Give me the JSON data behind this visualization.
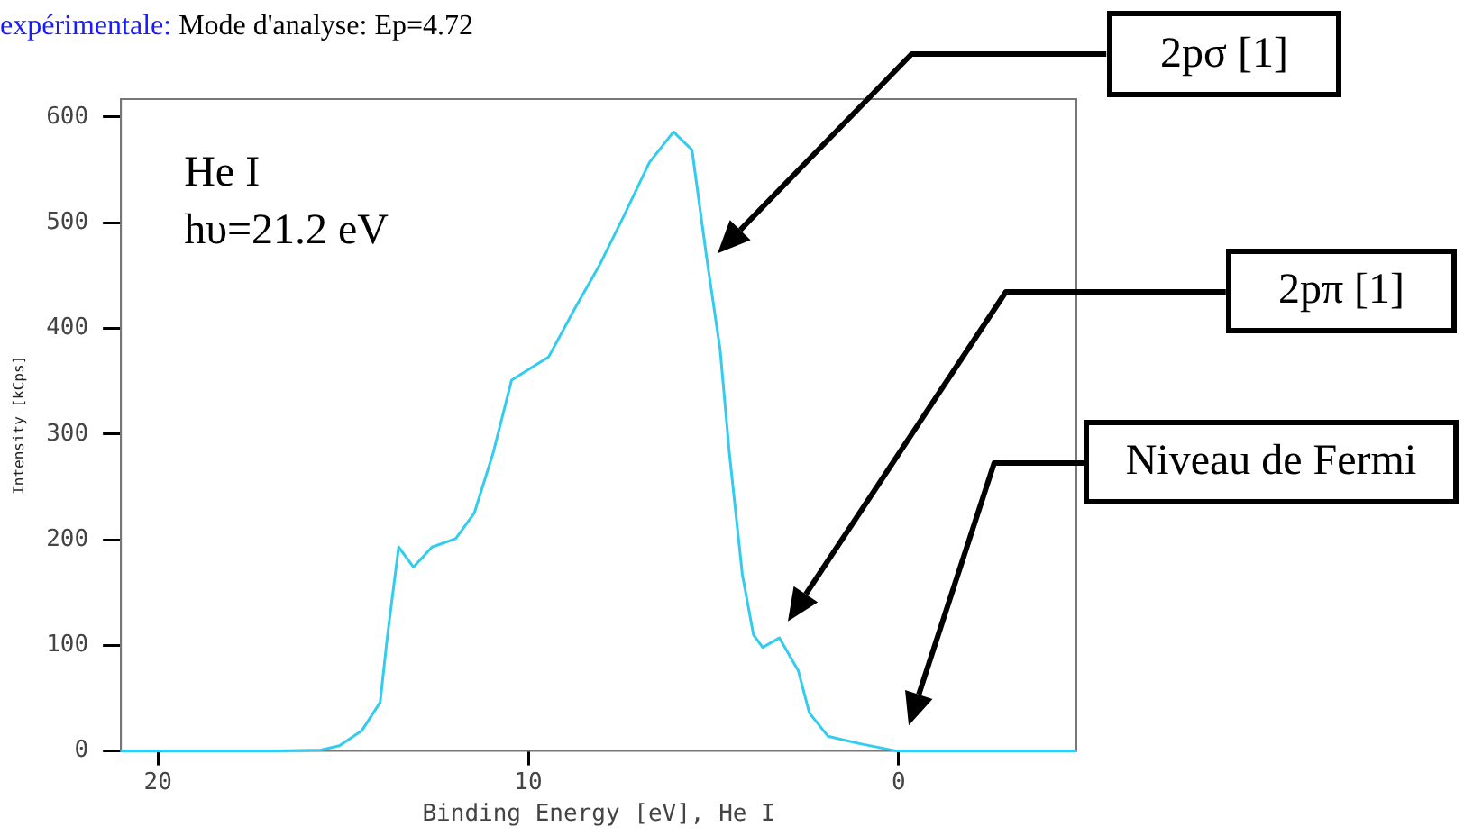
{
  "chart_data": {
    "type": "line",
    "title": "expérimentale:",
    "subtitle": "Mode d'analyse: Ep=4.72",
    "xlabel": "Binding Energy [eV], He I",
    "ylabel": "Intensity [kCps]",
    "x": [
      21,
      16.8,
      15.6,
      15.1,
      14.5,
      14.0,
      13.8,
      13.5,
      13.1,
      12.6,
      11.96,
      11.46,
      10.95,
      10.45,
      9.95,
      9.45,
      8.74,
      8.09,
      7.44,
      6.73,
      6.08,
      5.58,
      5.18,
      4.82,
      4.57,
      4.22,
      3.92,
      3.67,
      3.22,
      2.71,
      2.41,
      1.91,
      1.06,
      0.05,
      -4.8
    ],
    "series": [
      {
        "color": "#33ccee",
        "values": [
          0,
          0,
          1,
          5,
          19,
          46,
          110,
          193,
          174,
          193,
          201,
          225,
          282,
          351,
          362,
          373,
          419,
          459,
          505,
          557,
          586,
          569,
          466,
          380,
          282,
          167,
          110,
          98,
          107,
          76,
          36,
          14,
          7,
          0,
          0
        ]
      }
    ],
    "xlim": [
      21,
      -4.8
    ],
    "xticks": [
      20,
      10,
      0
    ],
    "ylim": [
      0,
      617
    ],
    "yticks": [
      0,
      100,
      200,
      300,
      400,
      500,
      600
    ],
    "grid": false,
    "legend": false,
    "marker": "none",
    "line_style": "solid",
    "annotations": [
      "He I",
      "hυ=21.2 eV",
      "2pσ [1]",
      "2pπ [1]",
      "Niveau de Fermi"
    ]
  }
}
